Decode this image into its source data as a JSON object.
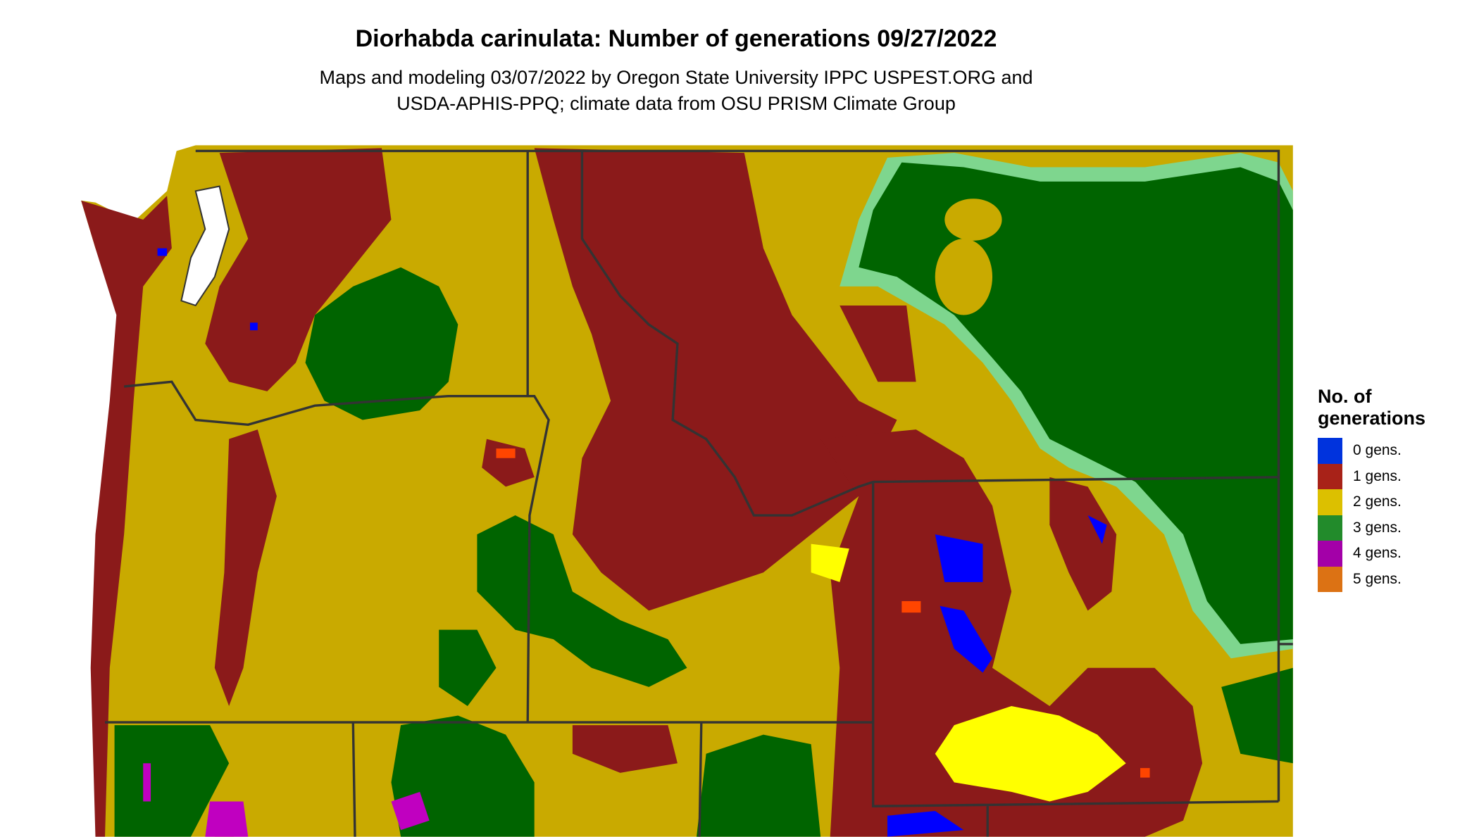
{
  "title": "Diorhabda carinulata: Number of generations 09/27/2022",
  "subtitle_lines": [
    "Maps and modeling 03/07/2022 by Oregon State University IPPC USPEST.ORG and",
    "USDA-APHIS-PPQ; climate data from OSU PRISM Climate Group"
  ],
  "legend": {
    "title": "No. of generations",
    "items": [
      {
        "label": "0 gens.",
        "color": "#0033dd"
      },
      {
        "label": "1 gens.",
        "color": "#a82218"
      },
      {
        "label": "2 gens.",
        "color": "#dcc000"
      },
      {
        "label": "3 gens.",
        "color": "#228b2b"
      },
      {
        "label": "4 gens.",
        "color": "#a300a8"
      },
      {
        "label": "5 gens.",
        "color": "#dc7214"
      }
    ]
  },
  "map_colors": {
    "zero": "#0000ff",
    "one": "#8b1a1a",
    "two": "#c9aa00",
    "two_high": "#ffff00",
    "three": "#006400",
    "three_low": "#7ed68e",
    "four": "#c000c0",
    "five": "#e07000",
    "border": "#333333"
  }
}
